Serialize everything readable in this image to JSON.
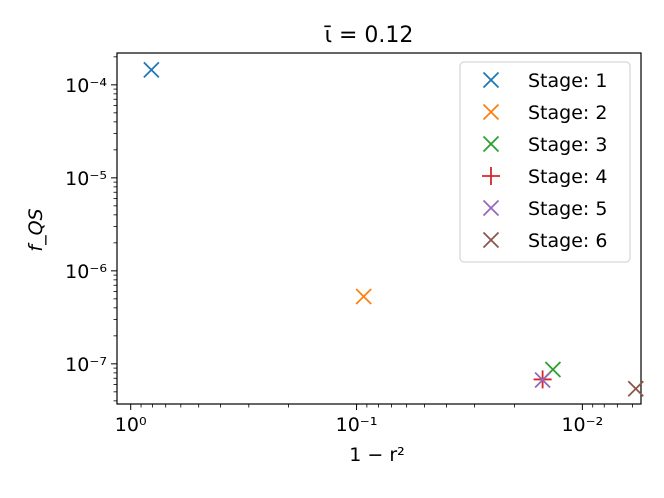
{
  "chart_data": {
    "type": "scatter",
    "title": "ῑ = 0.12",
    "xlabel": "1 − r²",
    "ylabel": "f_QS",
    "xscale": "log",
    "yscale": "log",
    "x_direction": "reversed",
    "xlim": [
      1.15,
      0.0055
    ],
    "ylim": [
      3.7e-08,
      0.00022
    ],
    "x_ticks": [
      {
        "value": 1,
        "label": "10⁰"
      },
      {
        "value": 0.1,
        "label": "10⁻¹"
      },
      {
        "value": 0.01,
        "label": "10⁻²"
      }
    ],
    "y_ticks": [
      {
        "value": 1e-07,
        "label": "10⁻⁷"
      },
      {
        "value": 1e-06,
        "label": "10⁻⁶"
      },
      {
        "value": 1e-05,
        "label": "10⁻⁵"
      },
      {
        "value": 0.0001,
        "label": "10⁻⁴"
      }
    ],
    "grid": false,
    "legend_position": "upper right",
    "series": [
      {
        "name": "Stage: 1",
        "marker": "x",
        "color": "#1f77b4",
        "x": [
          0.81
        ],
        "y": [
          0.000145
        ]
      },
      {
        "name": "Stage: 2",
        "marker": "x",
        "color": "#ff7f0e",
        "x": [
          0.093
        ],
        "y": [
          5.3e-07
        ]
      },
      {
        "name": "Stage: 3",
        "marker": "x",
        "color": "#2ca02c",
        "x": [
          0.0135
        ],
        "y": [
          8.7e-08
        ]
      },
      {
        "name": "Stage: 4",
        "marker": "+",
        "color": "#d62728",
        "x": [
          0.015
        ],
        "y": [
          6.8e-08
        ]
      },
      {
        "name": "Stage: 5",
        "marker": "x",
        "color": "#9467bd",
        "x": [
          0.015
        ],
        "y": [
          6.7e-08
        ]
      },
      {
        "name": "Stage: 6",
        "marker": "x",
        "color": "#8c564b",
        "x": [
          0.0058
        ],
        "y": [
          5.4e-08
        ]
      }
    ]
  }
}
